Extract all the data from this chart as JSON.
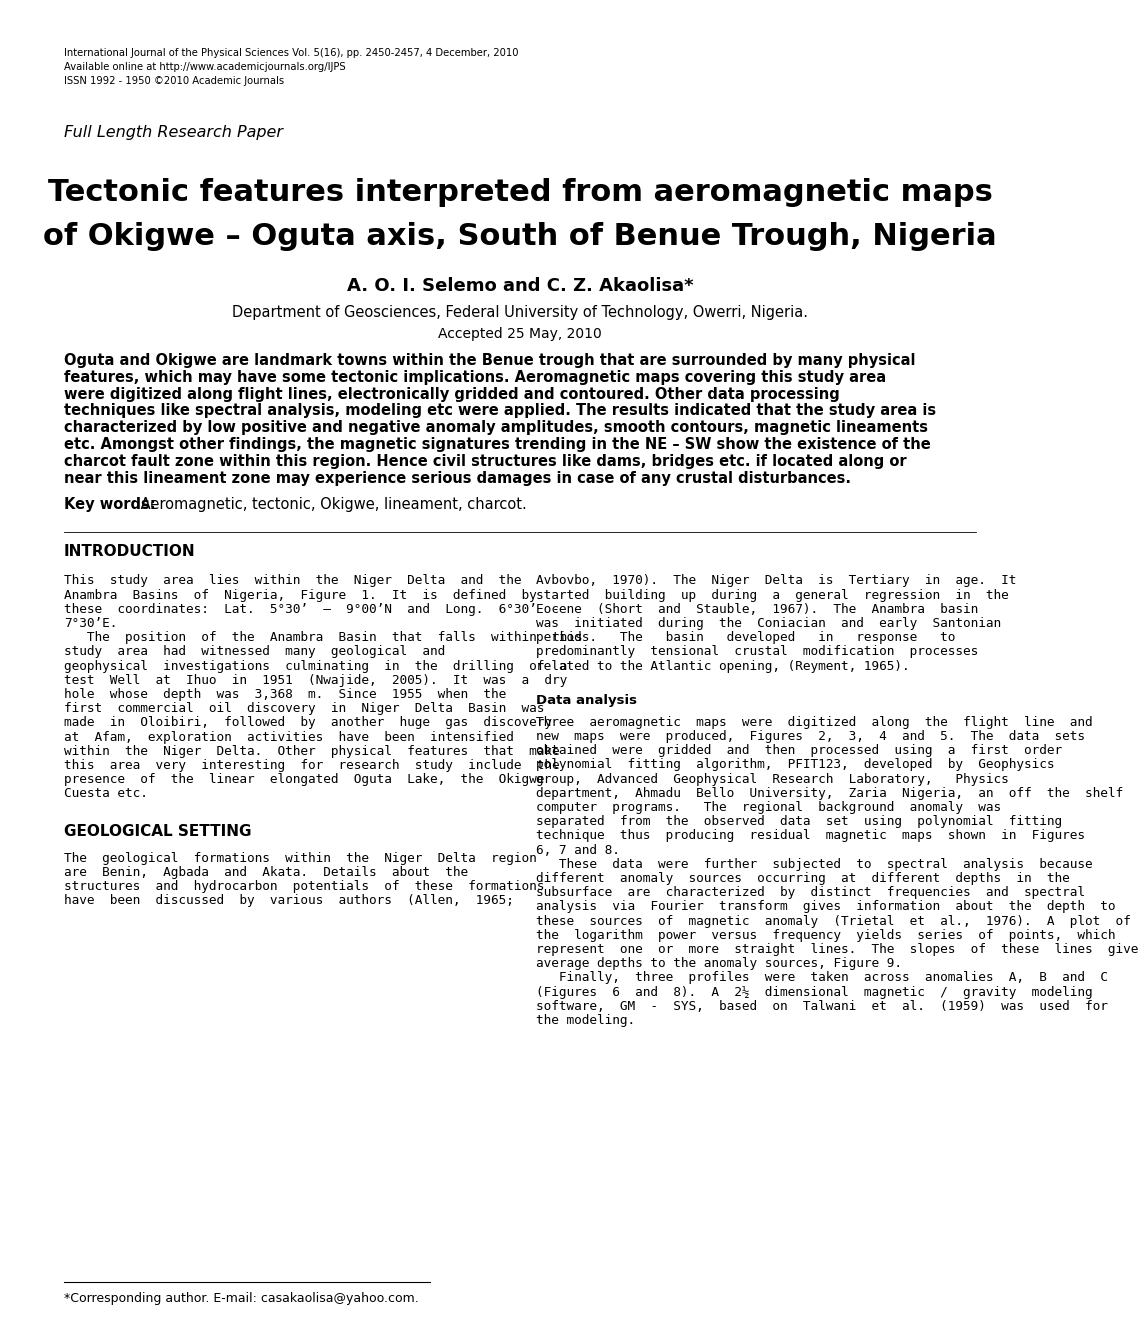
{
  "header_line1": "International Journal of the Physical Sciences Vol. 5(16), pp. 2450-2457, 4 December, 2010",
  "header_line2": "Available online at http://www.academicjournals.org/IJPS",
  "header_line3": "ISSN 1992 - 1950 ©2010 Academic Journals",
  "section_label": "Full Length Research Paper",
  "title_line1": "Tectonic features interpreted from aeromagnetic maps",
  "title_line2": "of Okigwe – Oguta axis, South of Benue Trough, Nigeria",
  "authors": "A. O. I. Selemo and C. Z. Akaolisa*",
  "affiliation": "Department of Geosciences, Federal University of Technology, Owerri, Nigeria.",
  "accepted": "Accepted 25 May, 2010",
  "abstract_lines": [
    "Oguta and Okigwe are landmark towns within the Benue trough that are surrounded by many physical",
    "features, which may have some tectonic implications. Aeromagnetic maps covering this study area",
    "were digitized along flight lines, electronically gridded and contoured. Other data processing",
    "techniques like spectral analysis, modeling etc were applied. The results indicated that the study area is",
    "characterized by low positive and negative anomaly amplitudes, smooth contours, magnetic lineaments",
    "etc. Amongst other findings, the magnetic signatures trending in the NE – SW show the existence of the",
    "charcot fault zone within this region. Hence civil structures like dams, bridges etc. if located along or",
    "near this lineament zone may experience serious damages in case of any crustal disturbances."
  ],
  "keywords_label": "Key words:",
  "keywords": " Aeromagnetic, tectonic, Okigwe, lineament, charcot.",
  "intro_heading": "INTRODUCTION",
  "col1_lines": [
    "This  study  area  lies  within  the  Niger  Delta  and  the",
    "Anambra  Basins  of  Nigeria,  Figure  1.  It  is  defined  by",
    "these  coordinates:  Lat.  5°30’  –  9°00’N  and  Long.  6°30’  -",
    "7°30’E.",
    "   The  position  of  the  Anambra  Basin  that  falls  within  this",
    "study  area  had  witnessed  many  geological  and",
    "geophysical  investigations  culminating  in  the  drilling  of  a",
    "test  Well  at  Ihuo  in  1951  (Nwajide,  2005).  It  was  a  dry",
    "hole  whose  depth  was  3,368  m.  Since  1955  when  the",
    "first  commercial  oil  discovery  in  Niger  Delta  Basin  was",
    "made  in  Oloibiri,  followed  by  another  huge  gas  discovery",
    "at  Afam,  exploration  activities  have  been  intensified",
    "within  the  Niger  Delta.  Other  physical  features  that  make",
    "this  area  very  interesting  for  research  study  include  the",
    "presence  of  the  linear  elongated  Oguta  Lake,  the  Okigwe",
    "Cuesta etc."
  ],
  "geo_heading": "GEOLOGICAL SETTING",
  "col1_geo_lines": [
    "The  geological  formations  within  the  Niger  Delta  region",
    "are  Benin,  Agbada  and  Akata.  Details  about  the",
    "structures  and  hydrocarbon  potentials  of  these  formations",
    "have  been  discussed  by  various  authors  (Allen,  1965;"
  ],
  "col2_intro_lines": [
    "Avbovbo,  1970).  The  Niger  Delta  is  Tertiary  in  age.  It",
    "started  building  up  during  a  general  regression  in  the",
    "Eocene  (Short  and  Stauble,  1967).  The  Anambra  basin",
    "was  initiated  during  the  Coniacian  and  early  Santonian",
    "periods.   The   basin   developed   in   response   to",
    "predominantly  tensional  crustal  modification  processes",
    "related to the Atlantic opening, (Reyment, 1965)."
  ],
  "data_analysis_heading": "Data analysis",
  "col2_da_lines": [
    "Three  aeromagnetic  maps  were  digitized  along  the  flight  line  and",
    "new  maps  were  produced,  Figures  2,  3,  4  and  5.  The  data  sets",
    "obtained  were  gridded  and  then  processed  using  a  first  order",
    "polynomial  fitting  algorithm,  PFIT123,  developed  by  Geophysics",
    "group,  Advanced  Geophysical  Research  Laboratory,   Physics",
    "department,  Ahmadu  Bello  University,  Zaria  Nigeria,  an  off  the  shelf",
    "computer  programs.   The  regional  background  anomaly  was",
    "separated  from  the  observed  data  set  using  polynomial  fitting",
    "technique  thus  producing  residual  magnetic  maps  shown  in  Figures",
    "6, 7 and 8.",
    "   These  data  were  further  subjected  to  spectral  analysis  because",
    "different  anomaly  sources  occurring  at  different  depths  in  the",
    "subsurface  are  characterized  by  distinct  frequencies  and  spectral",
    "analysis  via  Fourier  transform  gives  information  about  the  depth  to",
    "these  sources  of  magnetic  anomaly  (Trietal  et  al.,  1976).  A  plot  of",
    "the  logarithm  power  versus  frequency  yields  series  of  points,  which",
    "represent  one  or  more  straight  lines.  The  slopes  of  these  lines  give",
    "average depths to the anomaly sources, Figure 9.",
    "   Finally,  three  profiles  were  taken  across  anomalies  A,  B  and  C",
    "(Figures  6  and  8).  A  2½  dimensional  magnetic  /  gravity  modeling",
    "software,  GM  -  SYS,  based  on  Talwani  et  al.  (1959)  was  used  for",
    "the modeling."
  ],
  "footnote": "*Corresponding author. E-mail: casakaolisa@yahoo.com.",
  "bg_color": "#ffffff",
  "text_color": "#000000"
}
